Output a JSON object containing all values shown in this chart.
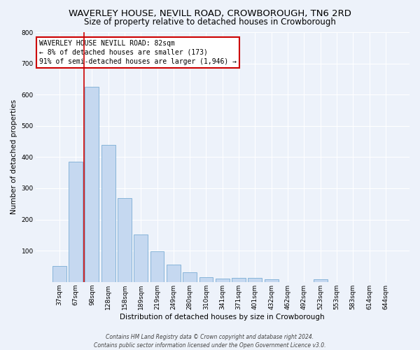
{
  "title": "WAVERLEY HOUSE, NEVILL ROAD, CROWBOROUGH, TN6 2RD",
  "subtitle": "Size of property relative to detached houses in Crowborough",
  "xlabel": "Distribution of detached houses by size in Crowborough",
  "ylabel": "Number of detached properties",
  "bar_labels": [
    "37sqm",
    "67sqm",
    "98sqm",
    "128sqm",
    "158sqm",
    "189sqm",
    "219sqm",
    "249sqm",
    "280sqm",
    "310sqm",
    "341sqm",
    "371sqm",
    "401sqm",
    "432sqm",
    "462sqm",
    "492sqm",
    "523sqm",
    "553sqm",
    "583sqm",
    "614sqm",
    "644sqm"
  ],
  "bar_values": [
    50,
    385,
    625,
    440,
    268,
    153,
    98,
    55,
    30,
    15,
    10,
    13,
    12,
    8,
    0,
    0,
    8,
    0,
    0,
    0,
    0
  ],
  "bar_color": "#c5d8f0",
  "bar_edge_color": "#7aadd4",
  "property_line_x": 1.5,
  "property_line_color": "#cc0000",
  "annotation_text": "WAVERLEY HOUSE NEVILL ROAD: 82sqm\n← 8% of detached houses are smaller (173)\n91% of semi-detached houses are larger (1,946) →",
  "annotation_box_color": "#ffffff",
  "annotation_box_edge_color": "#cc0000",
  "ylim": [
    0,
    800
  ],
  "yticks": [
    0,
    100,
    200,
    300,
    400,
    500,
    600,
    700,
    800
  ],
  "footer": "Contains HM Land Registry data © Crown copyright and database right 2024.\nContains public sector information licensed under the Open Government Licence v3.0.",
  "bg_color": "#edf2fa",
  "grid_color": "#ffffff",
  "title_fontsize": 9.5,
  "subtitle_fontsize": 8.5,
  "axis_label_fontsize": 7.5,
  "tick_fontsize": 6.5,
  "annotation_fontsize": 7.0,
  "footer_fontsize": 5.5
}
